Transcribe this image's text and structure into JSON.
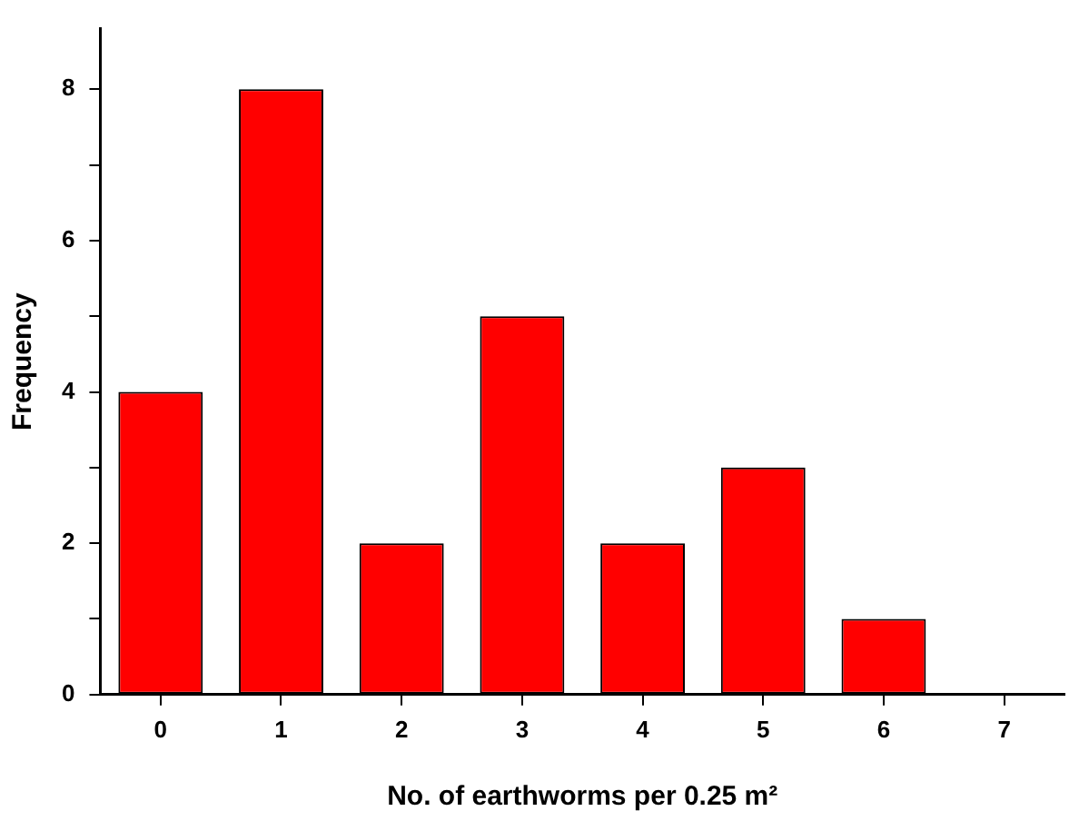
{
  "chart_data": {
    "type": "bar",
    "xlabel": "No. of earthworms per 0.25 m²",
    "ylabel": "Frequency",
    "categories": [
      "0",
      "1",
      "2",
      "3",
      "4",
      "5",
      "6",
      "7"
    ],
    "values": [
      4,
      8,
      2,
      5,
      2,
      3,
      1,
      0
    ],
    "color": "#ff0000",
    "ylim": [
      0,
      8.8
    ],
    "yticks": [
      0,
      {
        "value": 1,
        "label": null
      },
      2,
      {
        "value": 3,
        "label": null
      },
      4,
      {
        "value": 5,
        "label": null
      },
      6,
      {
        "value": 7,
        "label": null
      },
      8
    ],
    "grid": false,
    "legend": false
  }
}
